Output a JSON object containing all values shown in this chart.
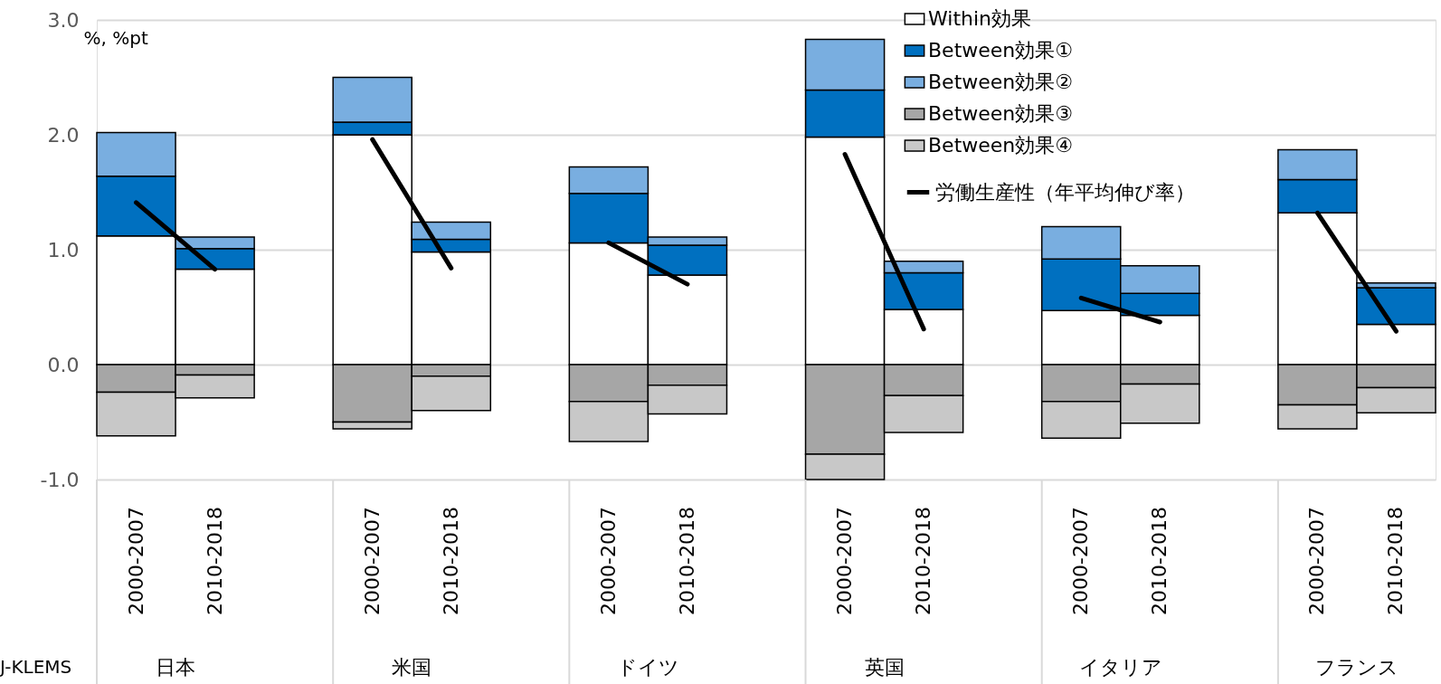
{
  "chart_data": {
    "type": "bar",
    "stacked": true,
    "ylabel": "%, %pt",
    "categories": [
      "2000-2007",
      "2010-2018",
      "2000-2007",
      "2010-2018",
      "2000-2007",
      "2010-2018",
      "2000-2007",
      "2010-2018",
      "2000-2007",
      "2010-2018",
      "2000-2007",
      "2010-2018"
    ],
    "series": [
      {
        "name": "Within効果",
        "color": "#ffffff",
        "values": [
          1.12,
          0.83,
          2.0,
          0.98,
          1.06,
          0.78,
          1.98,
          0.48,
          0.47,
          0.43,
          1.32,
          0.35
        ]
      },
      {
        "name": "Between効果①",
        "color": "#0070c0",
        "values": [
          0.52,
          0.18,
          0.11,
          0.11,
          0.43,
          0.26,
          0.41,
          0.32,
          0.45,
          0.19,
          0.29,
          0.32
        ]
      },
      {
        "name": "Between効果②",
        "color": "#79aee0",
        "values": [
          0.38,
          0.1,
          0.39,
          0.15,
          0.23,
          0.07,
          0.44,
          0.1,
          0.28,
          0.24,
          0.26,
          0.04
        ]
      },
      {
        "name": "Between効果③",
        "color": "#a6a6a6",
        "values": [
          -0.24,
          -0.09,
          -0.5,
          -0.1,
          -0.32,
          -0.18,
          -0.78,
          -0.27,
          -0.32,
          -0.17,
          -0.35,
          -0.2
        ]
      },
      {
        "name": "Between効果④",
        "color": "#c8c8c8",
        "values": [
          -0.38,
          -0.2,
          -0.06,
          -0.3,
          -0.35,
          -0.25,
          -0.22,
          -0.32,
          -0.32,
          -0.34,
          -0.21,
          -0.22
        ]
      },
      {
        "name": "労働生産性（年平均伸び率）",
        "type": "line",
        "color": "#000000",
        "values": [
          1.41,
          0.83,
          1.96,
          0.84,
          1.06,
          0.7,
          1.83,
          0.31,
          0.58,
          0.37,
          1.32,
          0.29
        ]
      }
    ],
    "ylim": [
      -1.0,
      3.0
    ],
    "yticks": [
      {
        "value": -1,
        "label": "-1.0"
      },
      {
        "value": 0,
        "label": "0.0"
      },
      {
        "value": 1,
        "label": "1.0"
      },
      {
        "value": 2,
        "label": "2.0"
      },
      {
        "value": 3,
        "label": "3.0"
      }
    ],
    "grid": "y",
    "legend": "top right",
    "annotations": [
      "日本",
      "米国",
      "ドイツ",
      "英国",
      "イタリア",
      "フランス",
      "J-KLEMS"
    ]
  }
}
